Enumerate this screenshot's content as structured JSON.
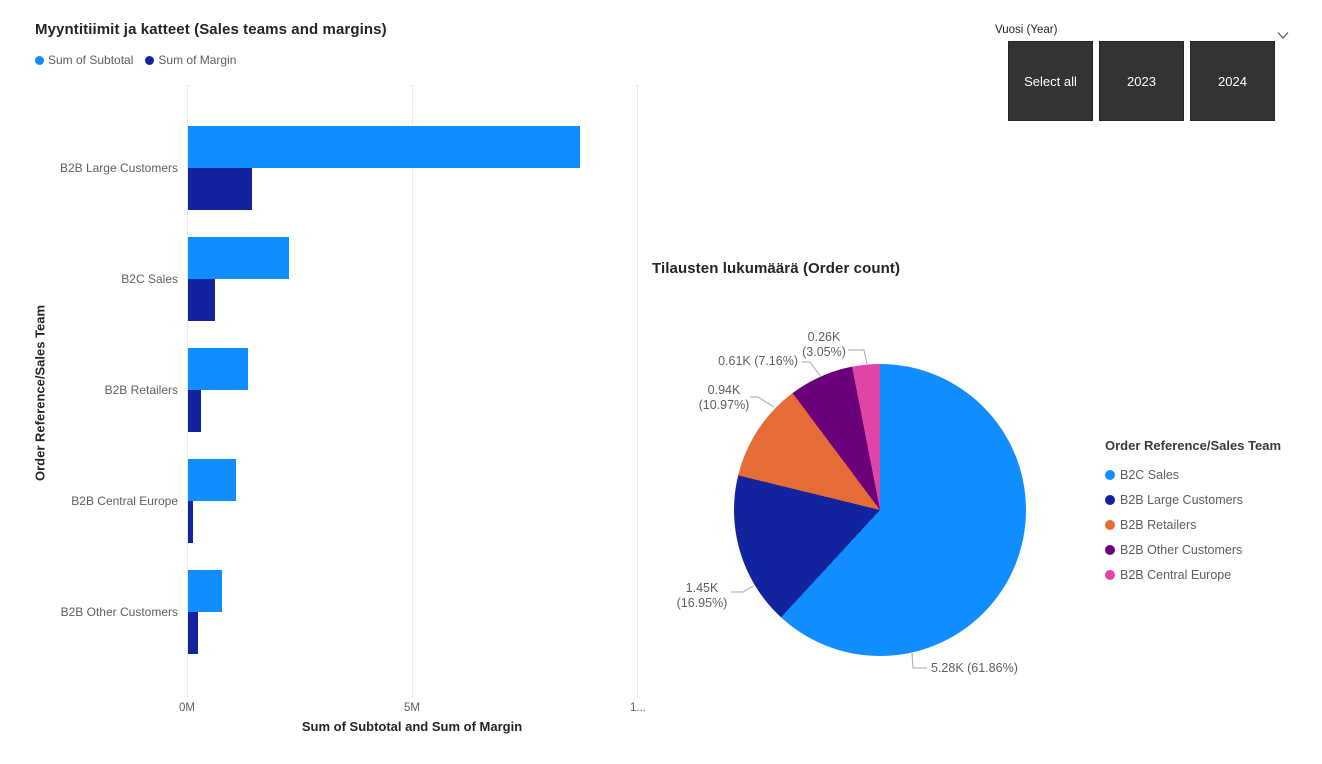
{
  "background": "#FFFFFF",
  "bar_visual": {
    "title": "Myyntitiimit ja katteet (Sales teams and margins)",
    "x_axis_title": "Sum of Subtotal and Sum of Margin",
    "y_axis_title": "Order Reference/Sales Team",
    "x_ticks": [
      "0M",
      "5M",
      "1..."
    ]
  },
  "pie_visual": {
    "title": "Tilausten lukumäärä (Order count)",
    "legend_title": "Order Reference/Sales Team",
    "callouts": [
      {
        "line1": "0.26K",
        "line2": "(3.05%)",
        "slice": "B2B Central Europe"
      },
      {
        "line1": "0.61K (7.16%)",
        "line2": "",
        "slice": "B2B Other Customers"
      },
      {
        "line1": "0.94K",
        "line2": "(10.97%)",
        "slice": "B2B Retailers"
      },
      {
        "line1": "1.45K",
        "line2": "(16.95%)",
        "slice": "B2B Large Customers"
      },
      {
        "line1": "5.28K (61.86%)",
        "line2": "",
        "slice": "B2C Sales"
      }
    ]
  },
  "slicer": {
    "label": "Vuosi (Year)",
    "chevron_icon": "chevron-down",
    "buttons": [
      "Select all",
      "2023",
      "2024"
    ]
  },
  "chart_data": [
    {
      "type": "bar",
      "orientation": "horizontal",
      "title": "Myyntitiimit ja katteet (Sales teams and margins)",
      "categories": [
        "B2B Large Customers",
        "B2C Sales",
        "B2B Retailers",
        "B2B Central Europe",
        "B2B Other Customers"
      ],
      "series": [
        {
          "name": "Sum of Subtotal",
          "color": "#118DFF",
          "values": [
            8700000,
            2250000,
            1340000,
            1070000,
            760000
          ]
        },
        {
          "name": "Sum of Margin",
          "color": "#12239E",
          "values": [
            1420000,
            590000,
            290000,
            120000,
            220000
          ]
        }
      ],
      "xlabel": "Sum of Subtotal and Sum of Margin",
      "ylabel": "Order Reference/Sales Team",
      "xlim": [
        0,
        10000000
      ],
      "x_tick_labels": [
        "0M",
        "5M",
        "1..."
      ],
      "grid": "vertical-dotted",
      "values_estimated_from_pixels": true
    },
    {
      "type": "pie",
      "title": "Tilausten lukumäärä (Order count)",
      "legend_title": "Order Reference/Sales Team",
      "legend_position": "right",
      "slices": [
        {
          "label": "B2C Sales",
          "value_k": 5.28,
          "pct": 61.86,
          "color": "#118DFF",
          "data_label": "5.28K (61.86%)"
        },
        {
          "label": "B2B Large Customers",
          "value_k": 1.45,
          "pct": 16.95,
          "color": "#12239E",
          "data_label": "1.45K (16.95%)"
        },
        {
          "label": "B2B Retailers",
          "value_k": 0.94,
          "pct": 10.97,
          "color": "#E66C37",
          "data_label": "0.94K (10.97%)"
        },
        {
          "label": "B2B Other Customers",
          "value_k": 0.61,
          "pct": 7.16,
          "color": "#6B007B",
          "data_label": "0.61K (7.16%)"
        },
        {
          "label": "B2B Central Europe",
          "value_k": 0.26,
          "pct": 3.05,
          "color": "#E044A7",
          "data_label": "0.26K (3.05%)"
        }
      ]
    }
  ]
}
